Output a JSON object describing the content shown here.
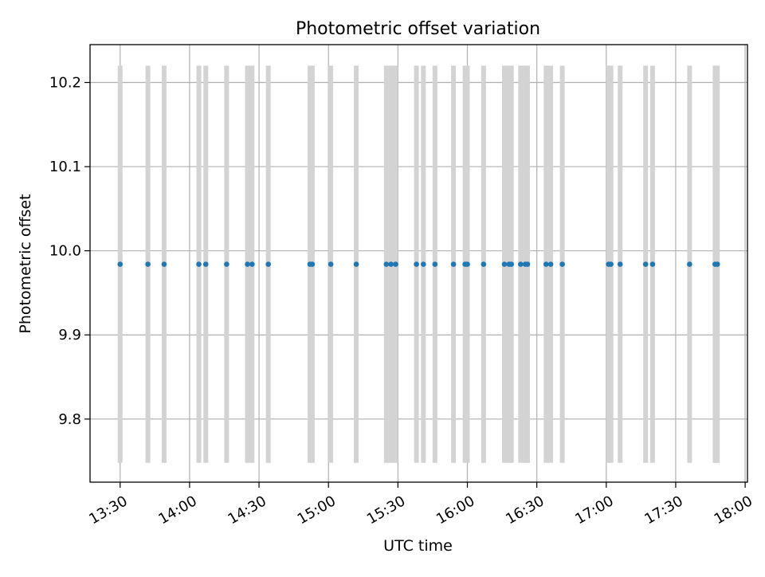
{
  "chart_data": {
    "type": "scatter",
    "title": "Photometric offset variation",
    "xlabel": "UTC time",
    "ylabel": "Photometric offset",
    "x_ticks": [
      "13:30",
      "14:00",
      "14:30",
      "15:00",
      "15:30",
      "16:00",
      "16:30",
      "17:00",
      "17:30",
      "18:00"
    ],
    "y_ticks": [
      "9.8",
      "9.9",
      "10.0",
      "10.1",
      "10.2"
    ],
    "xlim": [
      "13:17",
      "18:01"
    ],
    "ylim": [
      9.725,
      10.245
    ],
    "grid": true,
    "series": [
      {
        "marker_color": "#1f77b4",
        "errorbar_color": "#d3d3d3",
        "points": [
          {
            "x": "13:30",
            "y": 9.984,
            "yerr": 0.236
          },
          {
            "x": "13:42",
            "y": 9.984,
            "yerr": 0.236
          },
          {
            "x": "13:49",
            "y": 9.984,
            "yerr": 0.236
          },
          {
            "x": "14:04",
            "y": 9.984,
            "yerr": 0.236
          },
          {
            "x": "14:07",
            "y": 9.984,
            "yerr": 0.236
          },
          {
            "x": "14:16",
            "y": 9.984,
            "yerr": 0.236
          },
          {
            "x": "14:25",
            "y": 9.984,
            "yerr": 0.236
          },
          {
            "x": "14:27",
            "y": 9.984,
            "yerr": 0.236
          },
          {
            "x": "14:34",
            "y": 9.984,
            "yerr": 0.236
          },
          {
            "x": "14:52",
            "y": 9.984,
            "yerr": 0.236
          },
          {
            "x": "14:53",
            "y": 9.984,
            "yerr": 0.236
          },
          {
            "x": "15:01",
            "y": 9.984,
            "yerr": 0.236
          },
          {
            "x": "15:12",
            "y": 9.984,
            "yerr": 0.236
          },
          {
            "x": "15:25",
            "y": 9.984,
            "yerr": 0.236
          },
          {
            "x": "15:27",
            "y": 9.984,
            "yerr": 0.236
          },
          {
            "x": "15:29",
            "y": 9.984,
            "yerr": 0.236
          },
          {
            "x": "15:38",
            "y": 9.984,
            "yerr": 0.236
          },
          {
            "x": "15:41",
            "y": 9.984,
            "yerr": 0.236
          },
          {
            "x": "15:46",
            "y": 9.984,
            "yerr": 0.236
          },
          {
            "x": "15:54",
            "y": 9.984,
            "yerr": 0.236
          },
          {
            "x": "15:59",
            "y": 9.984,
            "yerr": 0.236
          },
          {
            "x": "16:00",
            "y": 9.984,
            "yerr": 0.236
          },
          {
            "x": "16:07",
            "y": 9.984,
            "yerr": 0.236
          },
          {
            "x": "16:16",
            "y": 9.984,
            "yerr": 0.236
          },
          {
            "x": "16:18",
            "y": 9.984,
            "yerr": 0.236
          },
          {
            "x": "16:19",
            "y": 9.984,
            "yerr": 0.236
          },
          {
            "x": "16:23",
            "y": 9.984,
            "yerr": 0.236
          },
          {
            "x": "16:25",
            "y": 9.984,
            "yerr": 0.236
          },
          {
            "x": "16:26",
            "y": 9.984,
            "yerr": 0.236
          },
          {
            "x": "16:34",
            "y": 9.984,
            "yerr": 0.236
          },
          {
            "x": "16:36",
            "y": 9.984,
            "yerr": 0.236
          },
          {
            "x": "16:41",
            "y": 9.984,
            "yerr": 0.236
          },
          {
            "x": "17:01",
            "y": 9.984,
            "yerr": 0.236
          },
          {
            "x": "17:02",
            "y": 9.984,
            "yerr": 0.236
          },
          {
            "x": "17:06",
            "y": 9.984,
            "yerr": 0.236
          },
          {
            "x": "17:17",
            "y": 9.984,
            "yerr": 0.236
          },
          {
            "x": "17:20",
            "y": 9.984,
            "yerr": 0.236
          },
          {
            "x": "17:36",
            "y": 9.984,
            "yerr": 0.236
          },
          {
            "x": "17:47",
            "y": 9.984,
            "yerr": 0.236
          },
          {
            "x": "17:48",
            "y": 9.984,
            "yerr": 0.236
          }
        ]
      }
    ]
  }
}
